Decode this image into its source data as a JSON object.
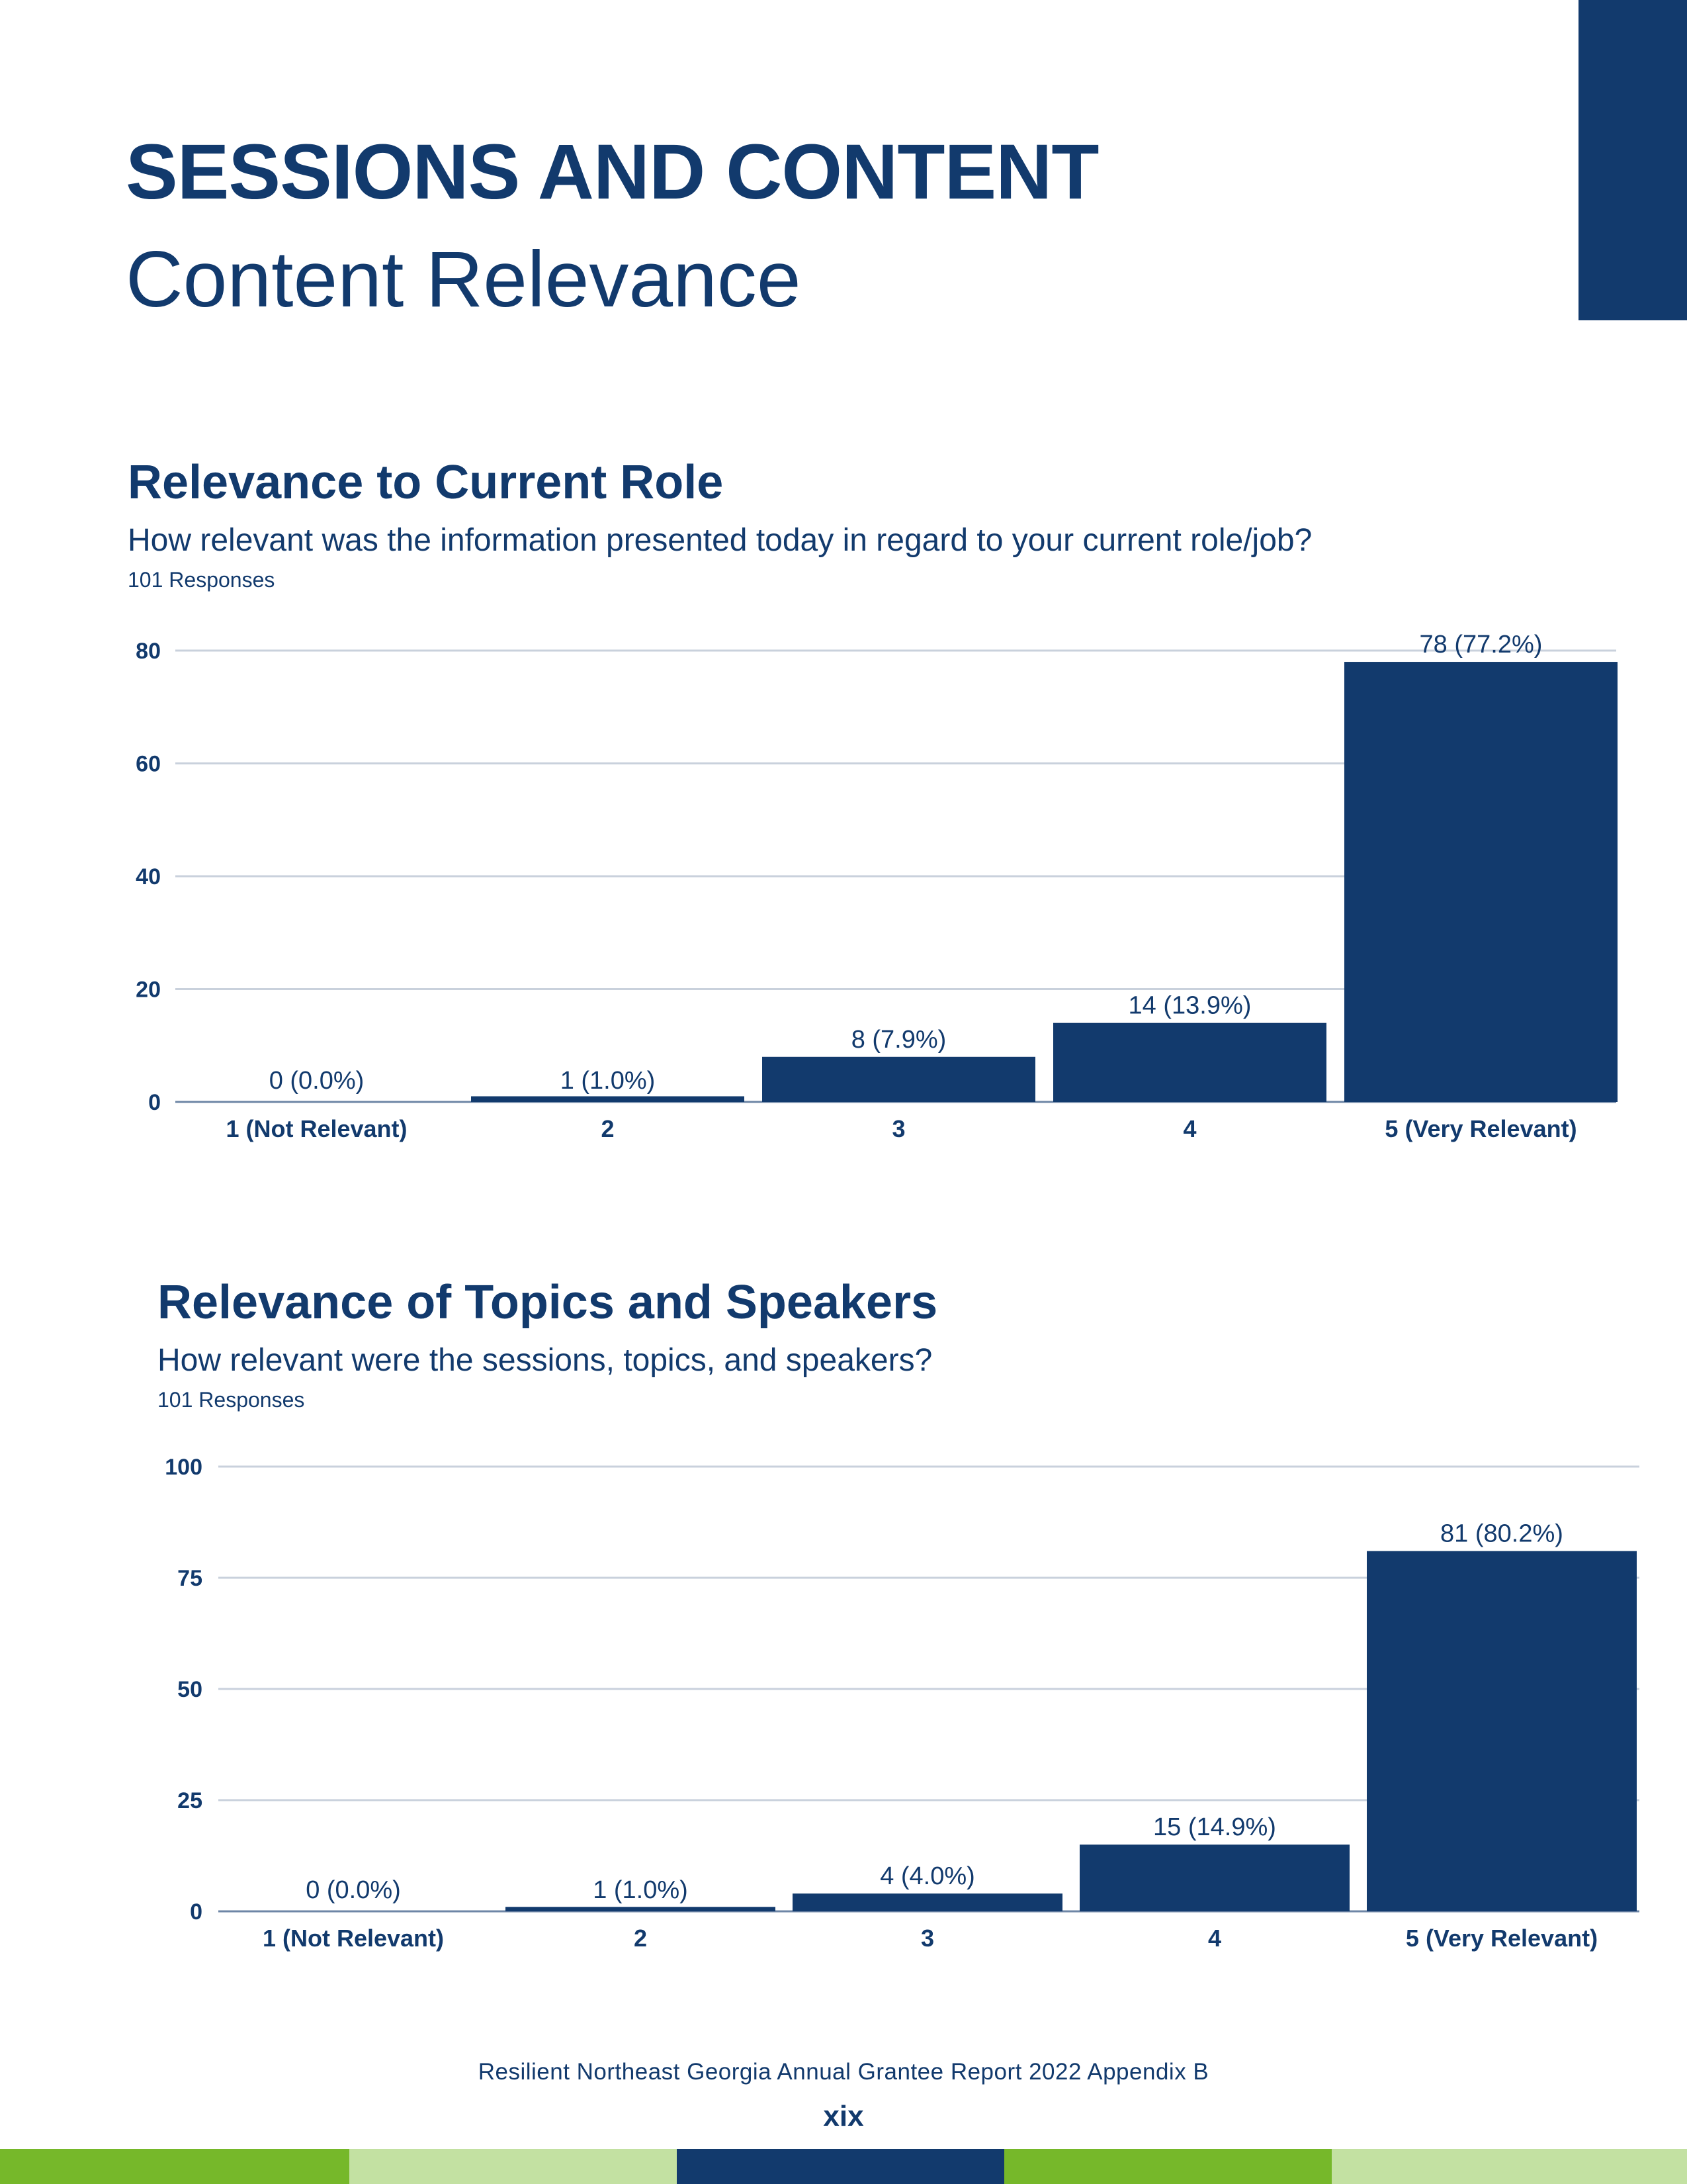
{
  "page": {
    "heading": "SESSIONS AND CONTENT",
    "subheading": "Content Relevance",
    "footer_text": "Resilient Northeast Georgia Annual Grantee Report 2022 Appendix B",
    "page_number": "xix"
  },
  "colors": {
    "navy": "#123a6d",
    "grid": "#c9d1dc",
    "green": "#76b82a",
    "light_green": "#c3e1a2"
  },
  "footer_stripes": [
    "green",
    "light_green",
    "navy",
    "green",
    "light_green"
  ],
  "charts": [
    {
      "title": "Relevance to Current Role",
      "question": "How relevant was the information presented today in regard to your current role/job?",
      "responses": "101 Responses"
    },
    {
      "title": "Relevance of Topics and Speakers",
      "question": "How relevant were the sessions, topics, and speakers?",
      "responses": "101 Responses"
    }
  ],
  "chart_data": [
    {
      "type": "bar",
      "title": "Relevance to Current Role",
      "categories": [
        "1 (Not Relevant)",
        "2",
        "3",
        "4",
        "5 (Very Relevant)"
      ],
      "values": [
        0,
        1,
        8,
        14,
        78
      ],
      "data_labels": [
        "0 (0.0%)",
        "1 (1.0%)",
        "8 (7.9%)",
        "14 (13.9%)",
        "78 (77.2%)"
      ],
      "yticks": [
        0,
        20,
        40,
        60,
        80
      ],
      "ylim": [
        0,
        80
      ],
      "grid": true,
      "legend": "none",
      "color": "#123a6d"
    },
    {
      "type": "bar",
      "title": "Relevance of Topics and Speakers",
      "categories": [
        "1 (Not Relevant)",
        "2",
        "3",
        "4",
        "5 (Very Relevant)"
      ],
      "values": [
        0,
        1,
        4,
        15,
        81
      ],
      "data_labels": [
        "0 (0.0%)",
        "1 (1.0%)",
        "4 (4.0%)",
        "15 (14.9%)",
        "81 (80.2%)"
      ],
      "yticks": [
        0,
        25,
        50,
        75,
        100
      ],
      "ylim": [
        0,
        100
      ],
      "grid": true,
      "legend": "none",
      "color": "#123a6d"
    }
  ]
}
